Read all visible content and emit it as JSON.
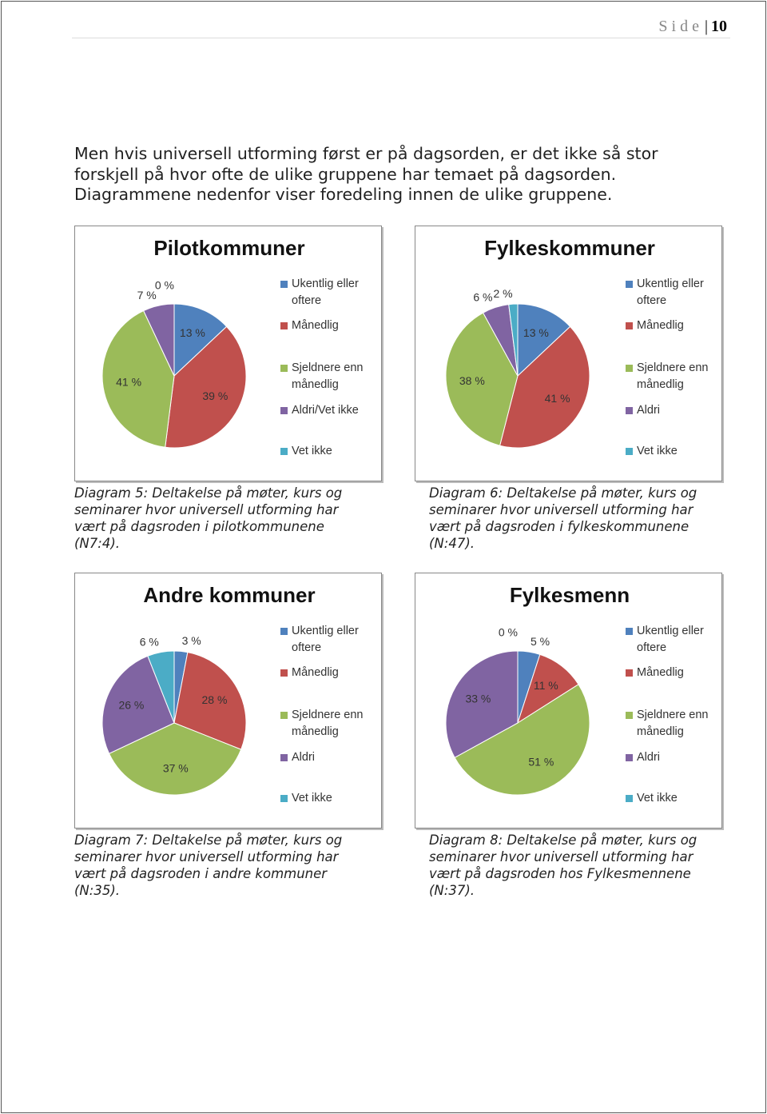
{
  "header": {
    "label": "Side",
    "page": "10"
  },
  "intro": {
    "lines": [
      "Men hvis universell utforming først er på dagsorden, er det ikke så stor",
      "forskjell på hvor ofte de ulike gruppene har temaet på dagsorden.",
      "Diagrammene nedenfor viser foredeling innen de ulike gruppene."
    ]
  },
  "chart_data": [
    {
      "type": "pie",
      "title": "Pilotkommuner",
      "categories": [
        "Ukentlig eller oftere",
        "Månedlig",
        "Sjeldnere enn månedlig",
        "Aldri/Vet ikke",
        "Vet ikke"
      ],
      "values": [
        13,
        39,
        41,
        7,
        0
      ],
      "value_labels": [
        "13 %",
        "39 %",
        "41 %",
        "7 %",
        "0 %"
      ],
      "colors": [
        "#4f81bd",
        "#c0504d",
        "#9bbb59",
        "#8064a2",
        "#4bacc6"
      ]
    },
    {
      "type": "pie",
      "title": "Fylkeskommuner",
      "categories": [
        "Ukentlig eller oftere",
        "Månedlig",
        "Sjeldnere enn månedlig",
        "Aldri",
        "Vet ikke"
      ],
      "values": [
        13,
        41,
        38,
        6,
        2
      ],
      "value_labels": [
        "13 %",
        "41 %",
        "38 %",
        "6 %",
        "2 %"
      ],
      "colors": [
        "#4f81bd",
        "#c0504d",
        "#9bbb59",
        "#8064a2",
        "#4bacc6"
      ]
    },
    {
      "type": "pie",
      "title": "Andre kommuner",
      "categories": [
        "Ukentlig eller oftere",
        "Månedlig",
        "Sjeldnere enn månedlig",
        "Aldri",
        "Vet ikke"
      ],
      "values": [
        3,
        28,
        37,
        26,
        6
      ],
      "value_labels": [
        "3 %",
        "28 %",
        "37 %",
        "26 %",
        "6 %"
      ],
      "colors": [
        "#4f81bd",
        "#c0504d",
        "#9bbb59",
        "#8064a2",
        "#4bacc6"
      ]
    },
    {
      "type": "pie",
      "title": "Fylkesmenn",
      "categories": [
        "Ukentlig eller oftere",
        "Månedlig",
        "Sjeldnere enn månedlig",
        "Aldri",
        "Vet ikke"
      ],
      "values": [
        5,
        11,
        51,
        33,
        0
      ],
      "value_labels": [
        "5 %",
        "11 %",
        "51 %",
        "33 %",
        "0 %"
      ],
      "colors": [
        "#4f81bd",
        "#c0504d",
        "#9bbb59",
        "#8064a2",
        "#4bacc6"
      ]
    }
  ],
  "captions": [
    {
      "lines": [
        "Diagram 5: Deltakelse på møter, kurs og",
        "seminarer hvor universell utforming har",
        "vært på dagsroden i pilotkommunene",
        "(N7:4)."
      ]
    },
    {
      "lines": [
        "Diagram 6: Deltakelse på møter, kurs og",
        "seminarer hvor universell utforming har",
        "vært på dagsroden i  fylkeskommunene",
        "(N:47)."
      ]
    },
    {
      "lines": [
        "Diagram 7: Deltakelse på møter, kurs og",
        "seminarer hvor universell utforming har",
        "vært på dagsroden i andre kommuner",
        "(N:35)."
      ]
    },
    {
      "lines": [
        "Diagram 8: Deltakelse på møter, kurs og",
        "seminarer hvor universell utforming har",
        "vært på dagsroden hos  Fylkesmennene",
        "(N:37)."
      ]
    }
  ]
}
